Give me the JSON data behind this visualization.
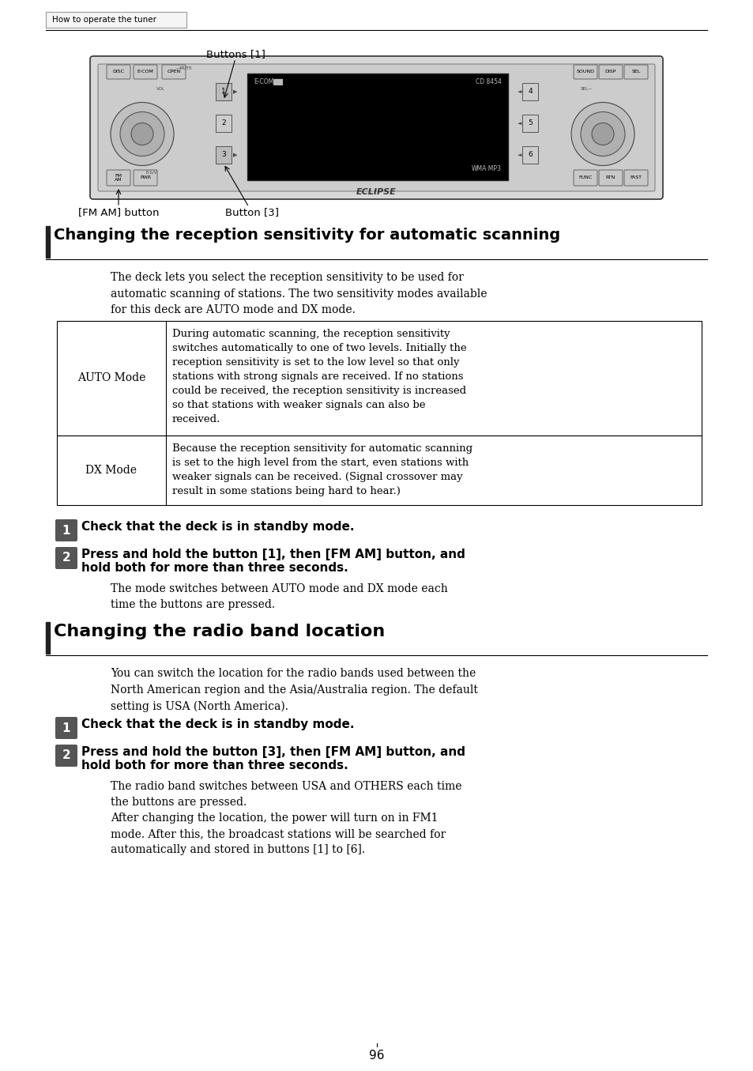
{
  "page_bg": "#ffffff",
  "header_tab_text": "How to operate the tuner",
  "header_tab_color": "#f5f5f5",
  "header_tab_border": "#999999",
  "header_line_color": "#000000",
  "section1_title": "Changing the reception sensitivity for automatic scanning",
  "section1_bar_color": "#222222",
  "section1_title_color": "#000000",
  "section1_intro": "The deck lets you select the reception sensitivity to be used for\nautomatic scanning of stations. The two sensitivity modes available\nfor this deck are AUTO mode and DX mode.",
  "table_border_color": "#000000",
  "table_rows": [
    {
      "label": "AUTO Mode",
      "text": "During automatic scanning, the reception sensitivity\nswitches automatically to one of two levels. Initially the\nreception sensitivity is set to the low level so that only\nstations with strong signals are received. If no stations\ncould be received, the reception sensitivity is increased\nso that stations with weaker signals can also be\nreceived."
    },
    {
      "label": "DX Mode",
      "text": "Because the reception sensitivity for automatic scanning\nis set to the high level from the start, even stations with\nweaker signals can be received. (Signal crossover may\nresult in some stations being hard to hear.)"
    }
  ],
  "step_badge_color": "#555555",
  "step_badge_text_color": "#ffffff",
  "section1_steps": [
    {
      "num": "1",
      "bold_text": "Check that the deck is in standby mode.",
      "normal_text": ""
    },
    {
      "num": "2",
      "bold_text": "Press and hold the button [1], then [FM AM] button, and\nhold both for more than three seconds.",
      "normal_text": "The mode switches between AUTO mode and DX mode each\ntime the buttons are pressed."
    }
  ],
  "section2_title": "Changing the radio band location",
  "section2_bar_color": "#222222",
  "section2_title_color": "#000000",
  "section2_intro": "You can switch the location for the radio bands used between the\nNorth American region and the Asia/Australia region. The default\nsetting is USA (North America).",
  "section2_steps": [
    {
      "num": "1",
      "bold_text": "Check that the deck is in standby mode.",
      "normal_text": ""
    },
    {
      "num": "2",
      "bold_text": "Press and hold the button [3], then [FM AM] button, and\nhold both for more than three seconds.",
      "normal_text": "The radio band switches between USA and OTHERS each time\nthe buttons are pressed.\nAfter changing the location, the power will turn on in FM1\nmode. After this, the broadcast stations will be searched for\nautomatically and stored in buttons [1] to [6]."
    }
  ],
  "page_number": "96",
  "image_label_buttons1": "Buttons [1]",
  "image_label_fmam": "[FM AM] button",
  "image_label_button3": "Button [3]"
}
